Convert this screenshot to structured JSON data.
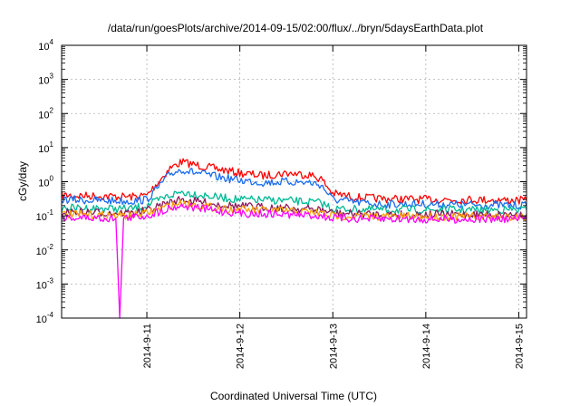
{
  "chart_data": {
    "type": "line",
    "title": "/data/run/goesPlots/archive/2014-09-15/02:00/flux/../bryn/5daysEarthData.plot",
    "xlabel": "Coordinated Universal Time (UTC)",
    "ylabel": "cGy/day",
    "yscale": "log",
    "ylim": [
      0.0001,
      10000
    ],
    "xlim": [
      "2014-09-10T02:00",
      "2014-09-15T02:00"
    ],
    "y_ticks": [
      {
        "base": "10",
        "exp": "-4",
        "value": 0.0001
      },
      {
        "base": "10",
        "exp": "-3",
        "value": 0.001
      },
      {
        "base": "10",
        "exp": "-2",
        "value": 0.01
      },
      {
        "base": "10",
        "exp": "-1",
        "value": 0.1
      },
      {
        "base": "10",
        "exp": "0",
        "value": 1
      },
      {
        "base": "10",
        "exp": "1",
        "value": 10
      },
      {
        "base": "10",
        "exp": "2",
        "value": 100
      },
      {
        "base": "10",
        "exp": "3",
        "value": 1000
      },
      {
        "base": "10",
        "exp": "4",
        "value": 10000
      }
    ],
    "x_ticks": [
      "2014-9-11",
      "2014-9-12",
      "2014-9-13",
      "2014-9-14",
      "2014-9-15"
    ],
    "x_tick_times": [
      "2014-09-11T00:00",
      "2014-09-12T00:00",
      "2014-09-13T00:00",
      "2014-09-14T00:00",
      "2014-09-15T00:00"
    ],
    "grid": true,
    "legend": "none",
    "series": [
      {
        "color": "#ff0000",
        "x": [
          "2014-09-10T02:00",
          "2014-09-10T12:00",
          "2014-09-10T20:00",
          "2014-09-11T00:00",
          "2014-09-11T03:00",
          "2014-09-11T06:00",
          "2014-09-11T09:00",
          "2014-09-11T12:00",
          "2014-09-11T18:00",
          "2014-09-12T00:00",
          "2014-09-12T06:00",
          "2014-09-12T12:00",
          "2014-09-12T18:00",
          "2014-09-12T21:00",
          "2014-09-13T00:00",
          "2014-09-13T06:00",
          "2014-09-13T12:00",
          "2014-09-14T00:00",
          "2014-09-14T12:00",
          "2014-09-15T02:00"
        ],
        "y": [
          0.4,
          0.38,
          0.36,
          0.4,
          1.0,
          2.5,
          3.8,
          3.2,
          2.4,
          1.8,
          1.5,
          1.8,
          1.6,
          1.2,
          0.45,
          0.35,
          0.32,
          0.3,
          0.3,
          0.28
        ]
      },
      {
        "color": "#1a6cf0",
        "x": [
          "2014-09-10T02:00",
          "2014-09-10T12:00",
          "2014-09-10T20:00",
          "2014-09-11T00:00",
          "2014-09-11T03:00",
          "2014-09-11T06:00",
          "2014-09-11T09:00",
          "2014-09-11T12:00",
          "2014-09-11T18:00",
          "2014-09-12T00:00",
          "2014-09-12T06:00",
          "2014-09-12T12:00",
          "2014-09-12T18:00",
          "2014-09-12T21:00",
          "2014-09-13T00:00",
          "2014-09-13T06:00",
          "2014-09-13T12:00",
          "2014-09-14T00:00",
          "2014-09-14T12:00",
          "2014-09-15T02:00"
        ],
        "y": [
          0.3,
          0.28,
          0.27,
          0.3,
          0.7,
          1.7,
          2.3,
          1.9,
          1.4,
          1.1,
          0.95,
          1.0,
          0.95,
          0.8,
          0.3,
          0.25,
          0.22,
          0.22,
          0.21,
          0.2
        ]
      },
      {
        "color": "#00b894",
        "x": [
          "2014-09-10T02:00",
          "2014-09-10T20:00",
          "2014-09-11T00:00",
          "2014-09-11T06:00",
          "2014-09-11T09:00",
          "2014-09-11T18:00",
          "2014-09-12T00:00",
          "2014-09-12T12:00",
          "2014-09-12T21:00",
          "2014-09-13T00:00",
          "2014-09-13T12:00",
          "2014-09-14T00:00",
          "2014-09-15T02:00"
        ],
        "y": [
          0.17,
          0.16,
          0.2,
          0.4,
          0.5,
          0.35,
          0.3,
          0.28,
          0.24,
          0.16,
          0.15,
          0.15,
          0.15
        ]
      },
      {
        "color": "#8b1a5a",
        "x": [
          "2014-09-10T02:00",
          "2014-09-10T20:00",
          "2014-09-11T00:00",
          "2014-09-11T06:00",
          "2014-09-11T09:00",
          "2014-09-11T18:00",
          "2014-09-12T00:00",
          "2014-09-12T12:00",
          "2014-09-12T21:00",
          "2014-09-13T00:00",
          "2014-09-13T12:00",
          "2014-09-14T00:00",
          "2014-09-15T02:00"
        ],
        "y": [
          0.13,
          0.12,
          0.14,
          0.25,
          0.3,
          0.22,
          0.19,
          0.17,
          0.15,
          0.12,
          0.11,
          0.11,
          0.11
        ]
      },
      {
        "color": "#ffa000",
        "x": [
          "2014-09-10T02:00",
          "2014-09-10T20:00",
          "2014-09-11T00:00",
          "2014-09-11T06:00",
          "2014-09-11T09:00",
          "2014-09-11T18:00",
          "2014-09-12T00:00",
          "2014-09-12T12:00",
          "2014-09-12T21:00",
          "2014-09-13T00:00",
          "2014-09-13T12:00",
          "2014-09-14T00:00",
          "2014-09-15T02:00"
        ],
        "y": [
          0.11,
          0.1,
          0.12,
          0.2,
          0.24,
          0.17,
          0.15,
          0.14,
          0.12,
          0.1,
          0.095,
          0.095,
          0.095
        ]
      },
      {
        "color": "#ff00ff",
        "x": [
          "2014-09-10T02:00",
          "2014-09-10T12:00",
          "2014-09-10T16:00",
          "2014-09-10T17:00",
          "2014-09-10T18:00",
          "2014-09-11T00:00",
          "2014-09-11T06:00",
          "2014-09-11T09:00",
          "2014-09-11T18:00",
          "2014-09-12T00:00",
          "2014-09-12T12:00",
          "2014-09-12T21:00",
          "2014-09-13T00:00",
          "2014-09-13T12:00",
          "2014-09-14T00:00",
          "2014-09-15T02:00"
        ],
        "y": [
          0.09,
          0.085,
          0.085,
          0.0001,
          0.085,
          0.1,
          0.17,
          0.2,
          0.14,
          0.12,
          0.11,
          0.1,
          0.085,
          0.08,
          0.08,
          0.08
        ]
      }
    ]
  }
}
